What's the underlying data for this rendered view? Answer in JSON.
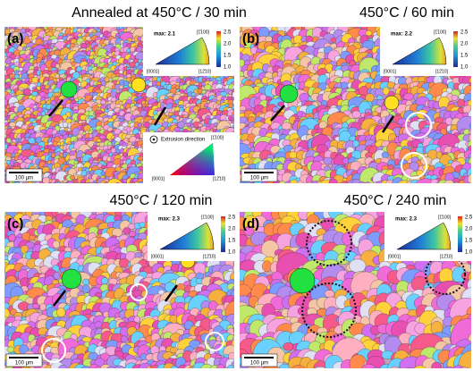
{
  "panels": [
    {
      "label": "(a)",
      "title": "Annealed at 450°C / 30 min",
      "ipf": {
        "max": "max: 2.1",
        "axes": [
          "[0001]",
          "[12̄10]",
          "[1̄100]"
        ],
        "scale": [
          "2.5",
          "2.0",
          "1.5",
          "1.0"
        ]
      },
      "scale_bar": "100 µm"
    },
    {
      "label": "(b)",
      "title": "450°C / 60 min",
      "ipf": {
        "max": "max: 2.2",
        "axes": [
          "[0001]",
          "[12̄10]",
          "[1̄100]"
        ],
        "scale": [
          "2.5",
          "2.0",
          "1.5",
          "1.0"
        ]
      },
      "scale_bar": "100 µm"
    },
    {
      "label": "(c)",
      "title": "450°C / 120 min",
      "ipf": {
        "max": "max: 2.3",
        "axes": [
          "[0001]",
          "[12̄10]",
          "[1̄100]"
        ],
        "scale": [
          "2.5",
          "2.0",
          "1.5",
          "1.0"
        ]
      },
      "scale_bar": "100 µm"
    },
    {
      "label": "(d)",
      "title": "450°C / 240 min",
      "ipf": {
        "max": "max: 2.3",
        "axes": [
          "[0001]",
          "[12̄10]",
          "[1̄100]"
        ],
        "scale": [
          "2.5",
          "2.0",
          "1.5",
          "1.0"
        ]
      },
      "scale_bar": "100 µm"
    }
  ],
  "legend": {
    "title": "Extrusion direction",
    "axes": [
      "[0001]",
      "[12̄10]",
      "[1̄100]"
    ]
  }
}
